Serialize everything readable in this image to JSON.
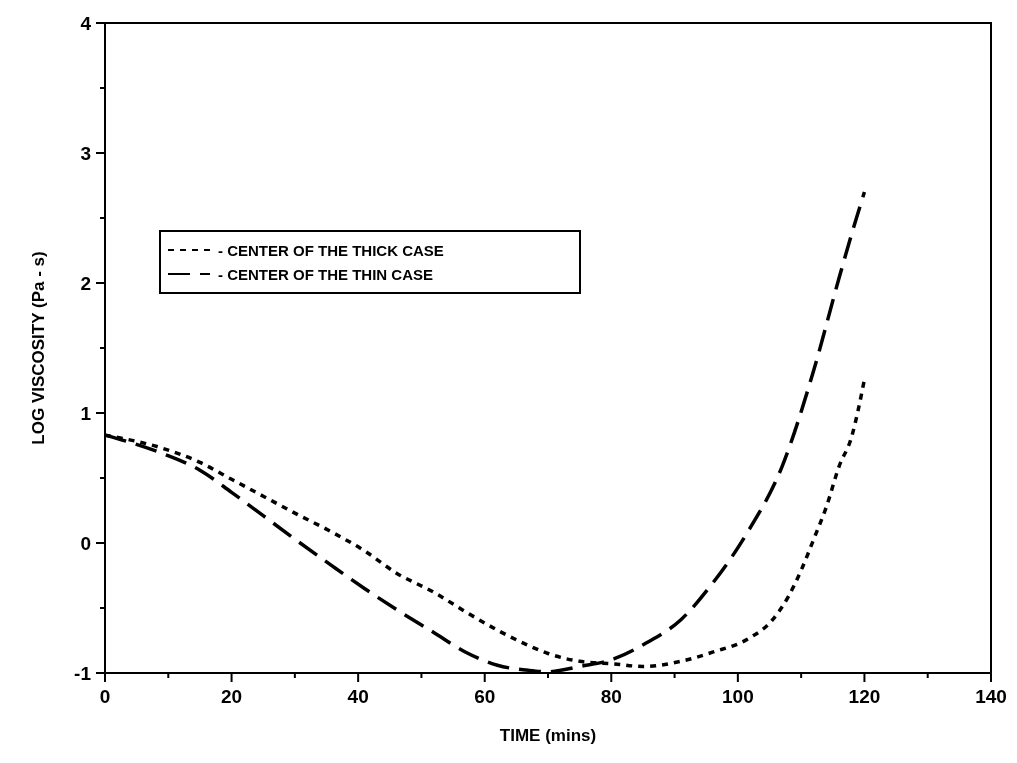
{
  "chart_data": {
    "type": "line",
    "xlabel": "TIME (mins)",
    "ylabel": "LOG VISCOSITY (Pa - s)",
    "xlim": [
      0,
      140
    ],
    "ylim": [
      -1,
      4
    ],
    "xticks": [
      0,
      {
        "value": 10,
        "label": null
      },
      20,
      {
        "value": 30,
        "label": null
      },
      40,
      {
        "value": 50,
        "label": null
      },
      60,
      {
        "value": 70,
        "label": null
      },
      80,
      {
        "value": 90,
        "label": null
      },
      100,
      {
        "value": 110,
        "label": null
      },
      120,
      {
        "value": 130,
        "label": null
      },
      140
    ],
    "yticks": [
      -1,
      {
        "value": -0.5,
        "label": null
      },
      0,
      {
        "value": 0.5,
        "label": null
      },
      1,
      {
        "value": 1.5,
        "label": null
      },
      2,
      {
        "value": 2.5,
        "label": null
      },
      3,
      {
        "value": 3.5,
        "label": null
      },
      4
    ],
    "grid": false,
    "legend": "left",
    "series": [
      {
        "name": "- CENTER OF THE THICK CASE",
        "color": "#000000",
        "line_style": "dotted",
        "x": [
          0,
          9,
          15,
          20,
          25,
          30,
          36,
          41,
          46,
          52,
          57,
          62,
          67,
          70,
          75,
          80.5,
          85,
          91,
          96,
          101.5,
          105.5,
          108,
          110,
          112,
          114,
          116,
          118,
          119,
          120
        ],
        "values": [
          0.83,
          0.73,
          0.62,
          0.49,
          0.36,
          0.23,
          0.08,
          -0.06,
          -0.23,
          -0.38,
          -0.53,
          -0.67,
          -0.79,
          -0.85,
          -0.91,
          -0.93,
          -0.95,
          -0.91,
          -0.84,
          -0.74,
          -0.59,
          -0.41,
          -0.21,
          0.03,
          0.28,
          0.59,
          0.82,
          1.02,
          1.26
        ]
      },
      {
        "name": "- CENTER OF THE THIN CASE",
        "color": "#000000",
        "line_style": "dashed",
        "x": [
          0,
          9,
          15,
          20,
          25,
          30,
          36,
          41,
          46,
          52,
          57,
          62,
          67,
          70,
          75,
          80.5,
          85.5,
          91,
          96,
          101.5,
          107,
          112,
          116,
          118,
          120
        ],
        "values": [
          0.83,
          0.69,
          0.56,
          0.39,
          0.21,
          0.03,
          -0.18,
          -0.35,
          -0.51,
          -0.69,
          -0.84,
          -0.94,
          -0.98,
          -0.99,
          -0.95,
          -0.89,
          -0.77,
          -0.59,
          -0.31,
          0.08,
          0.59,
          1.33,
          2.04,
          2.38,
          2.7
        ]
      }
    ]
  }
}
